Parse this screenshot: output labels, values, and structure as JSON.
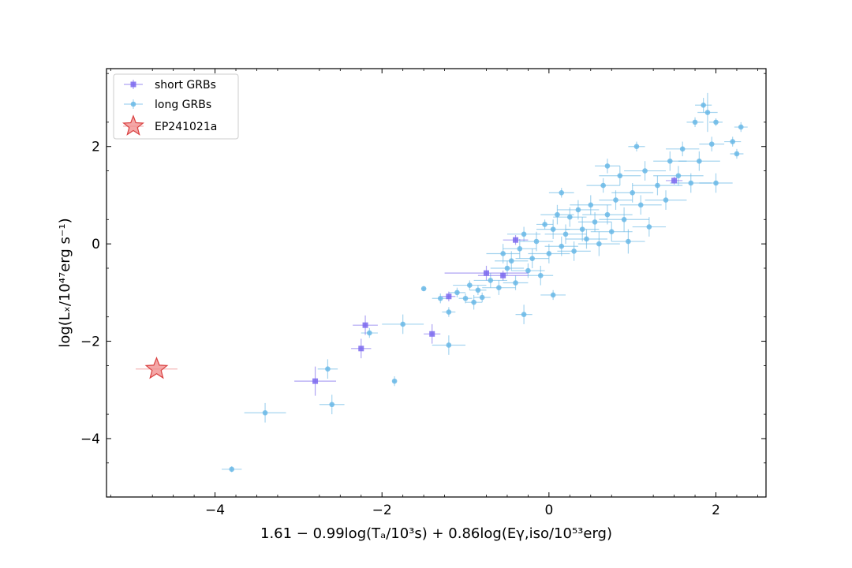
{
  "chart_data": {
    "type": "scatter",
    "xlabel": "1.61 − 0.99log(Tₐ/10³s) + 0.86log(Eγ,iso/10⁵³erg)",
    "ylabel": "log(Lₓ/10⁴⁷erg s⁻¹)",
    "xlim": [
      -5.3,
      2.6
    ],
    "ylim": [
      -5.2,
      3.6
    ],
    "xticks": [
      -4,
      -2,
      0,
      2
    ],
    "yticks": [
      -4,
      -2,
      0,
      2
    ],
    "xtick_labels": [
      "−4",
      "−2",
      "0",
      "2"
    ],
    "ytick_labels": [
      "−4",
      "−2",
      "0",
      "2"
    ],
    "grid": false,
    "legend_position": "top-left",
    "colors": {
      "short": "#7b68ee",
      "long": "#6ab9e6",
      "star_fill": "#f08a8a",
      "star_edge": "#d94040"
    },
    "series": [
      {
        "name": "short GRBs",
        "marker": "square",
        "points": [
          {
            "x": -2.8,
            "y": -2.82,
            "xerr": 0.25,
            "yerr": 0.3
          },
          {
            "x": -2.25,
            "y": -2.15,
            "xerr": 0.12,
            "yerr": 0.2
          },
          {
            "x": -2.2,
            "y": -1.67,
            "xerr": 0.15,
            "yerr": 0.2
          },
          {
            "x": -1.4,
            "y": -1.85,
            "xerr": 0.1,
            "yerr": 0.2
          },
          {
            "x": -1.2,
            "y": -1.08,
            "xerr": 0.08,
            "yerr": 0.1
          },
          {
            "x": -0.75,
            "y": -0.6,
            "xerr": 0.5,
            "yerr": 0.15
          },
          {
            "x": -0.55,
            "y": -0.65,
            "xerr": 0.3,
            "yerr": 0.1
          },
          {
            "x": -0.4,
            "y": 0.08,
            "xerr": 0.15,
            "yerr": 0.1
          },
          {
            "x": 1.5,
            "y": 1.3,
            "xerr": 0.1,
            "yerr": 0.08
          }
        ]
      },
      {
        "name": "long GRBs",
        "marker": "circle",
        "points": [
          {
            "x": -3.8,
            "y": -4.63,
            "xerr": 0.12,
            "yerr": 0.06
          },
          {
            "x": -3.4,
            "y": -3.47,
            "xerr": 0.25,
            "yerr": 0.2
          },
          {
            "x": -2.6,
            "y": -3.3,
            "xerr": 0.15,
            "yerr": 0.2
          },
          {
            "x": -2.65,
            "y": -2.57,
            "xerr": 0.12,
            "yerr": 0.2
          },
          {
            "x": -2.15,
            "y": -1.83,
            "xerr": 0.1,
            "yerr": 0.1
          },
          {
            "x": -1.85,
            "y": -2.82,
            "xerr": 0.02,
            "yerr": 0.1
          },
          {
            "x": -1.75,
            "y": -1.65,
            "xerr": 0.25,
            "yerr": 0.2
          },
          {
            "x": -1.2,
            "y": -2.08,
            "xerr": 0.2,
            "yerr": 0.2
          },
          {
            "x": -1.5,
            "y": -0.92,
            "xerr": 0.03,
            "yerr": 0.05
          },
          {
            "x": -1.3,
            "y": -1.12,
            "xerr": 0.1,
            "yerr": 0.1
          },
          {
            "x": -1.2,
            "y": -1.4,
            "xerr": 0.08,
            "yerr": 0.1
          },
          {
            "x": -1.1,
            "y": -1.0,
            "xerr": 0.1,
            "yerr": 0.1
          },
          {
            "x": -1.0,
            "y": -1.12,
            "xerr": 0.08,
            "yerr": 0.1
          },
          {
            "x": -0.95,
            "y": -0.85,
            "xerr": 0.2,
            "yerr": 0.1
          },
          {
            "x": -0.9,
            "y": -1.2,
            "xerr": 0.1,
            "yerr": 0.15
          },
          {
            "x": -0.85,
            "y": -0.95,
            "xerr": 0.1,
            "yerr": 0.1
          },
          {
            "x": -0.8,
            "y": -1.1,
            "xerr": 0.1,
            "yerr": 0.1
          },
          {
            "x": -0.7,
            "y": -0.75,
            "xerr": 0.2,
            "yerr": 0.15
          },
          {
            "x": -0.6,
            "y": -0.9,
            "xerr": 0.2,
            "yerr": 0.15
          },
          {
            "x": -0.55,
            "y": -0.2,
            "xerr": 0.2,
            "yerr": 0.2
          },
          {
            "x": -0.5,
            "y": -0.5,
            "xerr": 0.2,
            "yerr": 0.15
          },
          {
            "x": -0.45,
            "y": -0.35,
            "xerr": 0.2,
            "yerr": 0.2
          },
          {
            "x": -0.4,
            "y": -0.8,
            "xerr": 0.15,
            "yerr": 0.15
          },
          {
            "x": -0.35,
            "y": -0.1,
            "xerr": 0.2,
            "yerr": 0.2
          },
          {
            "x": -0.3,
            "y": -1.45,
            "xerr": 0.1,
            "yerr": 0.2
          },
          {
            "x": -0.3,
            "y": 0.2,
            "xerr": 0.2,
            "yerr": 0.15
          },
          {
            "x": -0.25,
            "y": -0.55,
            "xerr": 0.2,
            "yerr": 0.15
          },
          {
            "x": -0.2,
            "y": -0.3,
            "xerr": 0.2,
            "yerr": 0.2
          },
          {
            "x": -0.15,
            "y": 0.05,
            "xerr": 0.2,
            "yerr": 0.2
          },
          {
            "x": -0.1,
            "y": -0.65,
            "xerr": 0.15,
            "yerr": 0.2
          },
          {
            "x": -0.05,
            "y": 0.4,
            "xerr": 0.1,
            "yerr": 0.1
          },
          {
            "x": 0.0,
            "y": -0.2,
            "xerr": 0.25,
            "yerr": 0.2
          },
          {
            "x": 0.05,
            "y": 0.3,
            "xerr": 0.2,
            "yerr": 0.2
          },
          {
            "x": 0.05,
            "y": -1.05,
            "xerr": 0.15,
            "yerr": 0.1
          },
          {
            "x": 0.1,
            "y": 0.6,
            "xerr": 0.2,
            "yerr": 0.2
          },
          {
            "x": 0.15,
            "y": -0.05,
            "xerr": 0.2,
            "yerr": 0.2
          },
          {
            "x": 0.15,
            "y": 1.05,
            "xerr": 0.15,
            "yerr": 0.1
          },
          {
            "x": 0.2,
            "y": 0.2,
            "xerr": 0.25,
            "yerr": 0.2
          },
          {
            "x": 0.25,
            "y": 0.55,
            "xerr": 0.2,
            "yerr": 0.2
          },
          {
            "x": 0.3,
            "y": -0.15,
            "xerr": 0.2,
            "yerr": 0.2
          },
          {
            "x": 0.35,
            "y": 0.7,
            "xerr": 0.25,
            "yerr": 0.2
          },
          {
            "x": 0.4,
            "y": 0.3,
            "xerr": 0.2,
            "yerr": 0.25
          },
          {
            "x": 0.45,
            "y": 0.1,
            "xerr": 0.25,
            "yerr": 0.2
          },
          {
            "x": 0.5,
            "y": 0.8,
            "xerr": 0.25,
            "yerr": 0.2
          },
          {
            "x": 0.55,
            "y": 0.45,
            "xerr": 0.2,
            "yerr": 0.2
          },
          {
            "x": 0.6,
            "y": 0.0,
            "xerr": 0.25,
            "yerr": 0.25
          },
          {
            "x": 0.65,
            "y": 1.2,
            "xerr": 0.2,
            "yerr": 0.15
          },
          {
            "x": 0.7,
            "y": 0.6,
            "xerr": 0.3,
            "yerr": 0.2
          },
          {
            "x": 0.7,
            "y": 1.6,
            "xerr": 0.15,
            "yerr": 0.15
          },
          {
            "x": 0.75,
            "y": 0.25,
            "xerr": 0.25,
            "yerr": 0.2
          },
          {
            "x": 0.8,
            "y": 0.9,
            "xerr": 0.2,
            "yerr": 0.2
          },
          {
            "x": 0.85,
            "y": 1.4,
            "xerr": 0.25,
            "yerr": 0.2
          },
          {
            "x": 0.9,
            "y": 0.5,
            "xerr": 0.3,
            "yerr": 0.25
          },
          {
            "x": 0.95,
            "y": 0.05,
            "xerr": 0.2,
            "yerr": 0.25
          },
          {
            "x": 1.0,
            "y": 1.05,
            "xerr": 0.25,
            "yerr": 0.2
          },
          {
            "x": 1.05,
            "y": 2.0,
            "xerr": 0.1,
            "yerr": 0.1
          },
          {
            "x": 1.1,
            "y": 0.8,
            "xerr": 0.25,
            "yerr": 0.2
          },
          {
            "x": 1.15,
            "y": 1.5,
            "xerr": 0.25,
            "yerr": 0.2
          },
          {
            "x": 1.2,
            "y": 0.35,
            "xerr": 0.2,
            "yerr": 0.2
          },
          {
            "x": 1.3,
            "y": 1.2,
            "xerr": 0.3,
            "yerr": 0.2
          },
          {
            "x": 1.4,
            "y": 0.9,
            "xerr": 0.25,
            "yerr": 0.2
          },
          {
            "x": 1.45,
            "y": 1.7,
            "xerr": 0.2,
            "yerr": 0.2
          },
          {
            "x": 1.55,
            "y": 1.4,
            "xerr": 0.3,
            "yerr": 0.2
          },
          {
            "x": 1.6,
            "y": 1.95,
            "xerr": 0.2,
            "yerr": 0.15
          },
          {
            "x": 1.7,
            "y": 1.25,
            "xerr": 0.25,
            "yerr": 0.2
          },
          {
            "x": 1.75,
            "y": 2.5,
            "xerr": 0.1,
            "yerr": 0.1
          },
          {
            "x": 1.8,
            "y": 1.7,
            "xerr": 0.25,
            "yerr": 0.2
          },
          {
            "x": 1.85,
            "y": 2.85,
            "xerr": 0.1,
            "yerr": 0.15
          },
          {
            "x": 1.9,
            "y": 2.7,
            "xerr": 0.12,
            "yerr": 0.4
          },
          {
            "x": 1.95,
            "y": 2.05,
            "xerr": 0.15,
            "yerr": 0.15
          },
          {
            "x": 2.0,
            "y": 1.25,
            "xerr": 0.2,
            "yerr": 0.2
          },
          {
            "x": 2.0,
            "y": 2.5,
            "xerr": 0.08,
            "yerr": 0.08
          },
          {
            "x": 2.2,
            "y": 2.1,
            "xerr": 0.1,
            "yerr": 0.1
          },
          {
            "x": 2.25,
            "y": 1.85,
            "xerr": 0.08,
            "yerr": 0.1
          },
          {
            "x": 2.3,
            "y": 2.4,
            "xerr": 0.08,
            "yerr": 0.1
          }
        ]
      },
      {
        "name": "EP241021a",
        "marker": "star",
        "points": [
          {
            "x": -4.7,
            "y": -2.57,
            "xerr": 0.25,
            "yerr": 0.0
          }
        ]
      }
    ]
  }
}
